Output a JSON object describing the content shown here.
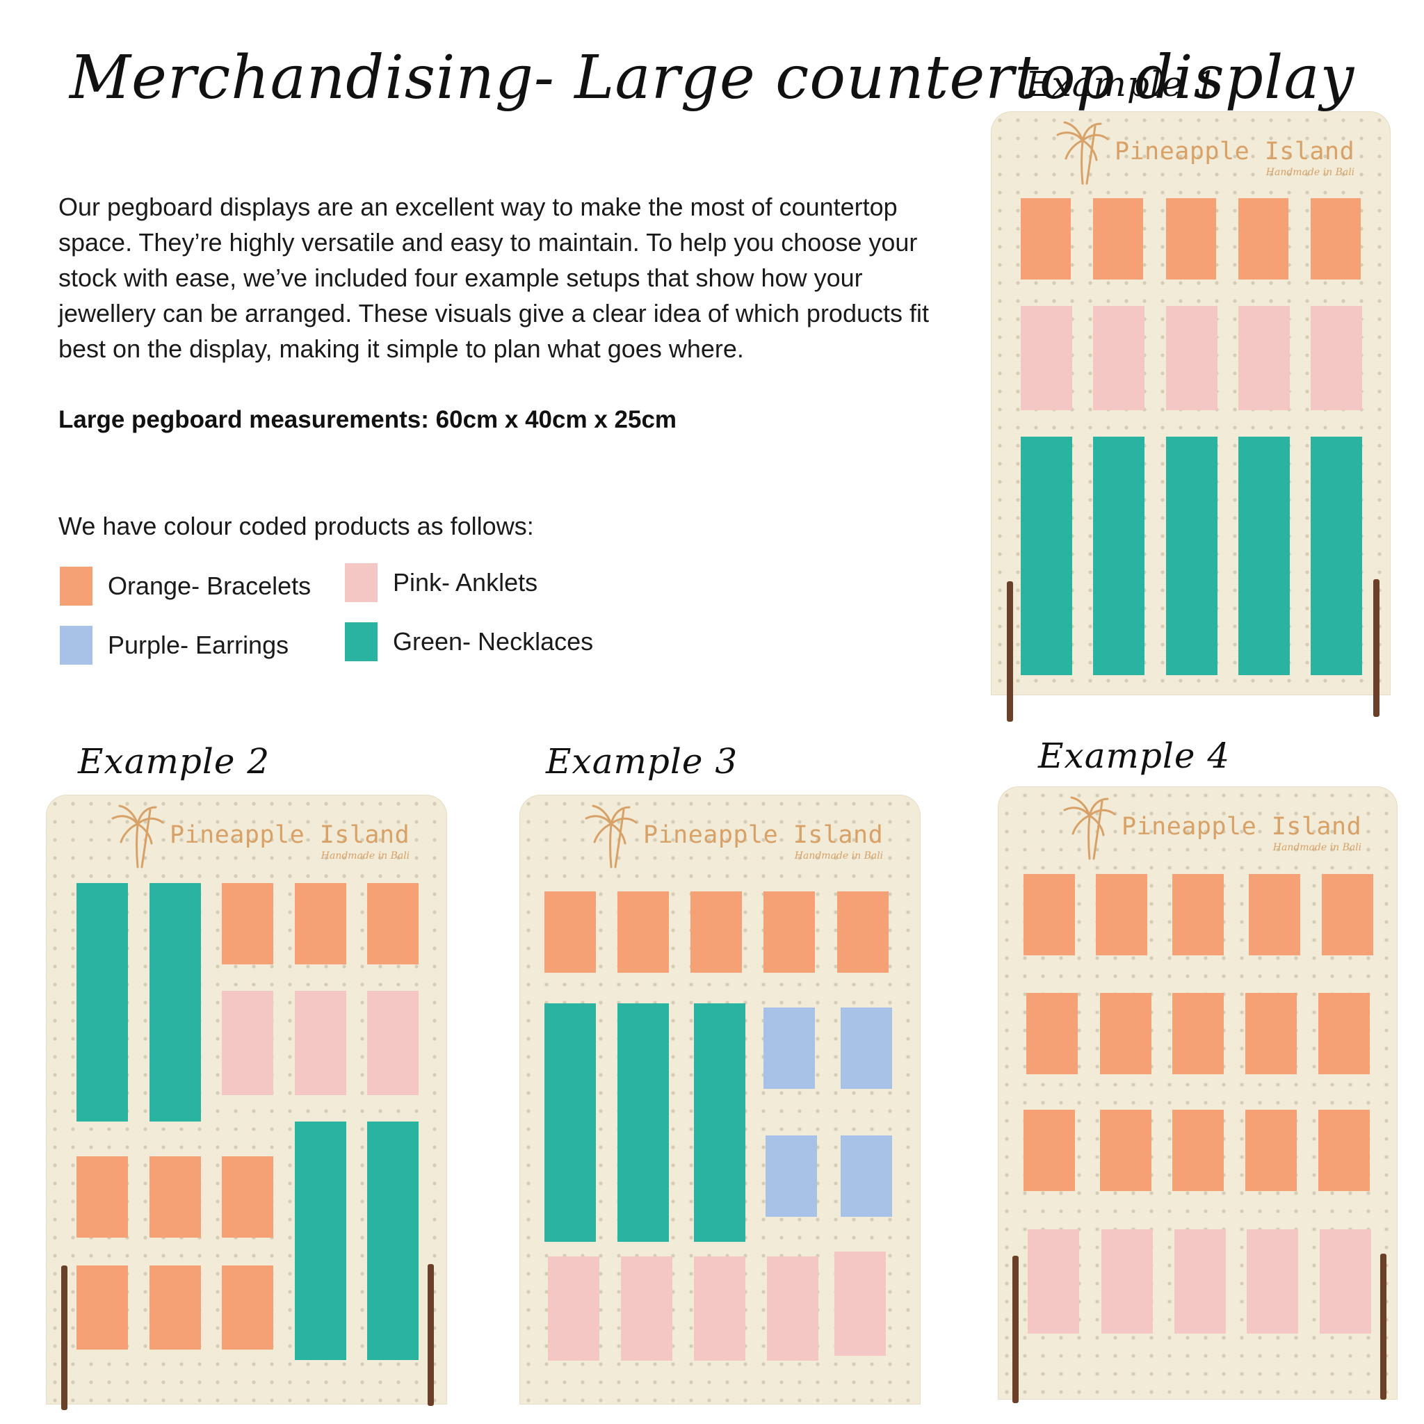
{
  "title": "Merchandising- Large countertop display",
  "intro": "Our pegboard displays are an excellent way to make the most of countertop space. They’re highly versatile and easy to maintain. To help you choose your stock with ease, we’ve included four example setups that show how your jewellery can be arranged. These visuals give a clear idea of which products fit best on the display, making it simple to plan what goes where.",
  "measurements": "Large pegboard measurements: 60cm x 40cm x 25cm",
  "legend_intro": "We have colour coded products as follows:",
  "colors": {
    "orange": "#f6a175",
    "pink": "#f5c7c4",
    "purple": "#a8c1e6",
    "green": "#2ab3a1",
    "board": "#f1ebd7",
    "logo": "#d8a168"
  },
  "legend": [
    {
      "label": "Orange- Bracelets",
      "color": "#f6a175"
    },
    {
      "label": "Pink- Anklets",
      "color": "#f5c7c4"
    },
    {
      "label": "Purple- Earrings",
      "color": "#a8c1e6"
    },
    {
      "label": "Green- Necklaces",
      "color": "#2ab3a1"
    }
  ],
  "brand": {
    "name": "Pineapple Island",
    "tagline": "Handmade in Bali",
    "icon": "palm-tree-icon"
  },
  "examples": [
    {
      "label": "Example 1"
    },
    {
      "label": "Example 2"
    },
    {
      "label": "Example 3"
    },
    {
      "label": "Example 4"
    }
  ]
}
